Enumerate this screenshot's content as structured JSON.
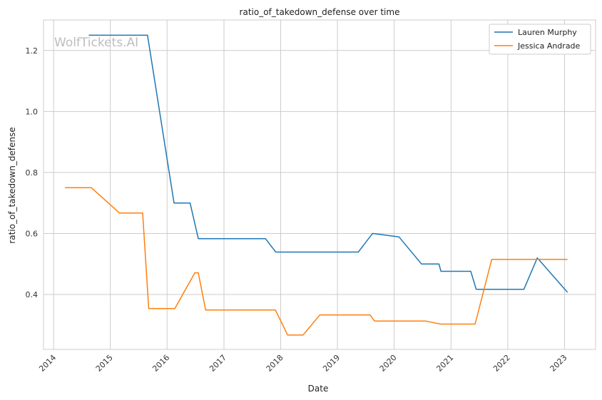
{
  "chart_data": {
    "type": "line",
    "title": "ratio_of_takedown_defense over time",
    "xlabel": "Date",
    "ylabel": "ratio_of_takedown_defense",
    "watermark": "WolfTickets.AI",
    "x_ticks": [
      "2014",
      "2015",
      "2016",
      "2017",
      "2018",
      "2019",
      "2020",
      "2021",
      "2022",
      "2023"
    ],
    "y_ticks": [
      "0.4",
      "0.6",
      "0.8",
      "1.0",
      "1.2"
    ],
    "xlim": [
      "2013-10-28",
      "2023-07-20"
    ],
    "ylim": [
      0.22,
      1.3
    ],
    "grid": true,
    "legend_position": "top-right",
    "series": [
      {
        "name": "Lauren Murphy",
        "color": "#1f77b4",
        "points": [
          [
            "2014-08-15",
            1.25
          ],
          [
            "2015-08-28",
            1.25
          ],
          [
            "2016-02-15",
            0.7
          ],
          [
            "2016-05-28",
            0.7
          ],
          [
            "2016-07-20",
            0.583
          ],
          [
            "2017-09-25",
            0.583
          ],
          [
            "2017-11-30",
            0.539
          ],
          [
            "2019-05-15",
            0.539
          ],
          [
            "2019-08-15",
            0.6
          ],
          [
            "2020-02-01",
            0.589
          ],
          [
            "2020-06-25",
            0.5
          ],
          [
            "2020-10-15",
            0.5
          ],
          [
            "2020-10-28",
            0.476
          ],
          [
            "2021-05-08",
            0.476
          ],
          [
            "2021-06-12",
            0.417
          ],
          [
            "2022-04-15",
            0.417
          ],
          [
            "2022-07-10",
            0.52
          ],
          [
            "2023-01-20",
            0.407
          ]
        ]
      },
      {
        "name": "Jessica Andrade",
        "color": "#ff7f0e",
        "points": [
          [
            "2014-03-15",
            0.75
          ],
          [
            "2014-09-01",
            0.75
          ],
          [
            "2015-03-01",
            0.667
          ],
          [
            "2015-07-28",
            0.667
          ],
          [
            "2015-09-05",
            0.354
          ],
          [
            "2016-02-20",
            0.354
          ],
          [
            "2016-06-28",
            0.471
          ],
          [
            "2016-07-20",
            0.471
          ],
          [
            "2016-09-05",
            0.349
          ],
          [
            "2017-11-28",
            0.349
          ],
          [
            "2018-02-15",
            0.267
          ],
          [
            "2018-05-25",
            0.267
          ],
          [
            "2018-09-10",
            0.333
          ],
          [
            "2019-07-30",
            0.333
          ],
          [
            "2019-08-28",
            0.313
          ],
          [
            "2020-07-20",
            0.313
          ],
          [
            "2020-10-25",
            0.303
          ],
          [
            "2021-06-05",
            0.303
          ],
          [
            "2021-09-20",
            0.515
          ],
          [
            "2023-01-20",
            0.515
          ]
        ]
      }
    ]
  }
}
